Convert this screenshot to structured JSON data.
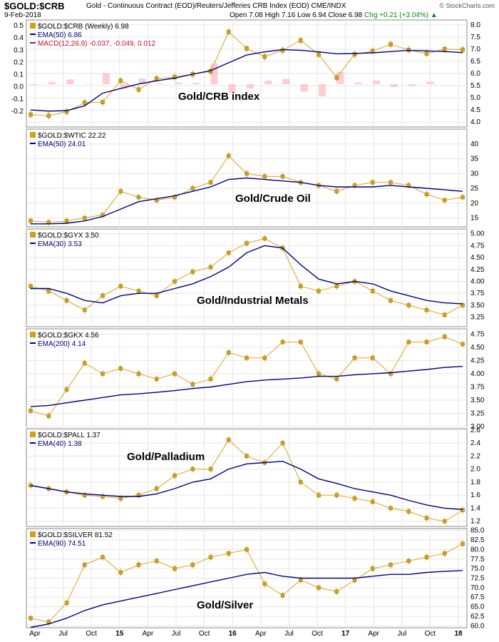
{
  "header": {
    "title": "$GOLD:$CRB",
    "description": "Gold - Continuous Contract (EOD)/Reuters/Jefferies CRB Index (EOD)  CME/INDX",
    "date": "9-Feb-2018",
    "ohlc": "Open 7.08  High 7.16  Low 6.94  Close 6.98",
    "change": "Chg +0.21 (+3.04%)",
    "change_arrow": "▲",
    "brand": "© StockCharts.com"
  },
  "colors": {
    "candle": "#d4a017",
    "ema": "#000080",
    "macd": "#ffb6c1",
    "grid": "#e6e6e6"
  },
  "chart_data": [
    {
      "type": "line",
      "id": "p1",
      "label": "$GOLD:$CRB (Weekly) 6.98",
      "ema_label": "EMA(50) 6.86",
      "macd_label": "MACD(12,26,9) -0.037, -0.049, 0.012",
      "annotation": "Gold/CRB index",
      "ylim": [
        3.8,
        8.2
      ],
      "yticks": [
        "8.0",
        "7.5",
        "7.0",
        "6.5",
        "6.0",
        "5.5",
        "5.0",
        "4.5",
        "4.0"
      ],
      "left_ticks": [
        "0.5",
        "0.4",
        "0.3",
        "0.2",
        "0.1",
        "0.0",
        "-0.1",
        "-0.2"
      ],
      "price": [
        4.31,
        4.26,
        4.43,
        4.8,
        4.82,
        5.7,
        5.34,
        5.79,
        5.85,
        5.97,
        6.09,
        7.71,
        7.03,
        6.69,
        6.95,
        7.36,
        6.78,
        5.83,
        6.79,
        6.92,
        7.2,
        6.97,
        6.82,
        7.0,
        6.98
      ],
      "ema": [
        4.5,
        4.45,
        4.47,
        4.67,
        5.19,
        5.38,
        5.57,
        5.7,
        5.81,
        5.97,
        6.12,
        6.44,
        6.76,
        6.89,
        6.98,
        6.95,
        6.89,
        6.81,
        6.82,
        6.85,
        6.9,
        6.95,
        6.93,
        6.9,
        6.86
      ]
    },
    {
      "type": "line",
      "id": "p2",
      "label": "$GOLD:$WTIC 22.22",
      "ema_label": "EMA(50) 24.01",
      "annotation": "Gold/Crude Oil",
      "ylim": [
        12,
        45
      ],
      "yticks": [
        "40",
        "35",
        "30",
        "25",
        "20",
        "15"
      ],
      "price": [
        14.0,
        13.5,
        14.0,
        15.0,
        16.0,
        24.0,
        22.0,
        21.0,
        22.0,
        25.0,
        27.0,
        36.0,
        30.0,
        29.0,
        29.0,
        27.0,
        26.0,
        24.0,
        26.0,
        27.0,
        27.0,
        26.0,
        23.0,
        21.0,
        22.0
      ],
      "ema": [
        13.0,
        13.0,
        13.2,
        14.0,
        15.5,
        18.0,
        20.5,
        21.5,
        22.5,
        24.0,
        25.5,
        28.0,
        28.5,
        28.0,
        27.5,
        27.0,
        26.0,
        25.5,
        25.5,
        25.5,
        26.0,
        25.5,
        25.0,
        24.5,
        24.0
      ]
    },
    {
      "type": "line",
      "id": "p3",
      "label": "$GOLD:$GYX 3.50",
      "ema_label": "EMA(30) 3.53",
      "annotation": "Gold/Industrial Metals",
      "ylim": [
        3.05,
        5.1
      ],
      "yticks": [
        "5.00",
        "4.75",
        "4.50",
        "4.25",
        "4.00",
        "3.75",
        "3.50",
        "3.25"
      ],
      "price": [
        3.9,
        3.8,
        3.6,
        3.4,
        3.7,
        3.9,
        3.8,
        3.7,
        4.0,
        4.2,
        4.3,
        4.6,
        4.8,
        4.9,
        4.7,
        3.9,
        3.8,
        3.9,
        4.0,
        3.8,
        3.6,
        3.5,
        3.4,
        3.3,
        3.5
      ],
      "ema": [
        3.85,
        3.85,
        3.75,
        3.6,
        3.55,
        3.7,
        3.75,
        3.75,
        3.85,
        3.95,
        4.1,
        4.3,
        4.6,
        4.75,
        4.7,
        4.35,
        4.05,
        3.95,
        4.0,
        3.95,
        3.8,
        3.7,
        3.6,
        3.55,
        3.53
      ]
    },
    {
      "type": "line",
      "id": "p4",
      "label": "$GOLD:$GKX 4.56",
      "ema_label": "EMA(200) 4.14",
      "ylim": [
        3.0,
        4.85
      ],
      "yticks": [
        "4.75",
        "4.50",
        "4.25",
        "4.00",
        "3.75",
        "3.50",
        "3.25",
        "3.00"
      ],
      "price": [
        3.3,
        3.2,
        3.7,
        4.2,
        4.0,
        4.1,
        4.0,
        3.9,
        4.0,
        3.8,
        3.9,
        4.4,
        4.3,
        4.3,
        4.6,
        4.6,
        4.0,
        3.9,
        4.3,
        4.3,
        4.0,
        4.6,
        4.6,
        4.7,
        4.56
      ],
      "ema": [
        3.38,
        3.4,
        3.45,
        3.5,
        3.55,
        3.6,
        3.62,
        3.65,
        3.68,
        3.72,
        3.75,
        3.8,
        3.85,
        3.88,
        3.9,
        3.92,
        3.95,
        3.95,
        3.98,
        4.0,
        4.02,
        4.05,
        4.08,
        4.12,
        4.14
      ]
    },
    {
      "type": "line",
      "id": "p5",
      "label": "$GOLD:$PALL 1.37",
      "ema_label": "EMA(40) 1.38",
      "annotation": "Gold/Palladium",
      "ylim": [
        1.12,
        2.62
      ],
      "yticks": [
        "2.6",
        "2.4",
        "2.2",
        "2.0",
        "1.8",
        "1.6",
        "1.4",
        "1.2"
      ],
      "price": [
        1.75,
        1.7,
        1.65,
        1.6,
        1.58,
        1.55,
        1.6,
        1.7,
        1.9,
        2.0,
        2.0,
        2.45,
        2.2,
        2.1,
        2.4,
        1.8,
        1.6,
        1.6,
        1.55,
        1.5,
        1.4,
        1.35,
        1.25,
        1.2,
        1.37
      ],
      "ema": [
        1.75,
        1.7,
        1.65,
        1.62,
        1.6,
        1.58,
        1.58,
        1.62,
        1.7,
        1.8,
        1.85,
        2.0,
        2.08,
        2.1,
        2.12,
        2.0,
        1.85,
        1.78,
        1.7,
        1.65,
        1.6,
        1.52,
        1.45,
        1.4,
        1.38
      ]
    },
    {
      "type": "line",
      "id": "p6",
      "label": "$GOLD:$SILVER 81.52",
      "ema_label": "EMA(90) 74.51",
      "annotation": "Gold/Silver",
      "ylim": [
        59.5,
        85.5
      ],
      "yticks": [
        "85.0",
        "82.5",
        "80.0",
        "77.5",
        "75.0",
        "72.5",
        "70.0",
        "67.5",
        "65.0",
        "62.5",
        "60.0"
      ],
      "price": [
        62.0,
        61.0,
        66.0,
        76.0,
        78.0,
        74.0,
        76.0,
        77.0,
        75.0,
        76.0,
        78.0,
        79.0,
        80.0,
        71.0,
        68.0,
        72.0,
        70.0,
        69.0,
        72.0,
        75.0,
        76.0,
        77.0,
        78.0,
        79.0,
        81.52
      ],
      "ema": [
        59.6,
        60.5,
        62.0,
        64.0,
        65.5,
        66.5,
        67.5,
        68.5,
        69.5,
        70.5,
        71.5,
        72.5,
        73.5,
        74.0,
        73.0,
        72.5,
        72.5,
        72.5,
        72.5,
        73.0,
        73.5,
        73.5,
        74.0,
        74.3,
        74.51
      ]
    }
  ],
  "xaxis": {
    "labels": [
      "Apr",
      "Jul",
      "Oct",
      "15",
      "Apr",
      "Jul",
      "Oct",
      "16",
      "Apr",
      "Jul",
      "Oct",
      "17",
      "Apr",
      "Jul",
      "Oct",
      "18"
    ],
    "positions": [
      0,
      1,
      2,
      3,
      4,
      5,
      6,
      7,
      8,
      9,
      10,
      11,
      12,
      13,
      14,
      15
    ]
  }
}
